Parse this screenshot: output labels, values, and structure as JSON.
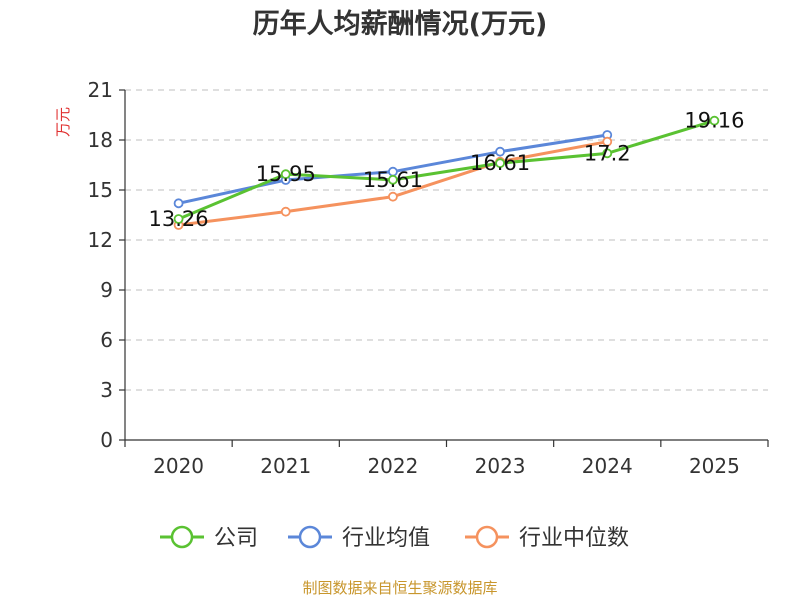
{
  "chart_data": {
    "type": "line",
    "title": "历年人均薪酬情况(万元)",
    "ylabel": "万元",
    "xlabel": "",
    "ylim": [
      0,
      21
    ],
    "yticks": [
      0,
      3,
      6,
      9,
      12,
      15,
      18,
      21
    ],
    "categories": [
      "2020",
      "2021",
      "2022",
      "2023",
      "2024",
      "2025"
    ],
    "grid": true,
    "legend_position": "bottom",
    "series": [
      {
        "name": "公司",
        "color": "#5ac232",
        "values": [
          13.26,
          15.95,
          15.61,
          16.61,
          17.2,
          19.16
        ],
        "labels": [
          "13.26",
          "15.95",
          "15.61",
          "16.61",
          "17.2",
          "19.16"
        ]
      },
      {
        "name": "行业均值",
        "color": "#5b87d9",
        "values": [
          14.2,
          15.6,
          16.1,
          17.3,
          18.3,
          null
        ],
        "labels": []
      },
      {
        "name": "行业中位数",
        "color": "#f5925e",
        "values": [
          12.9,
          13.7,
          14.6,
          16.7,
          17.9,
          null
        ],
        "labels": []
      }
    ],
    "source": "制图数据来自恒生聚源数据库"
  }
}
